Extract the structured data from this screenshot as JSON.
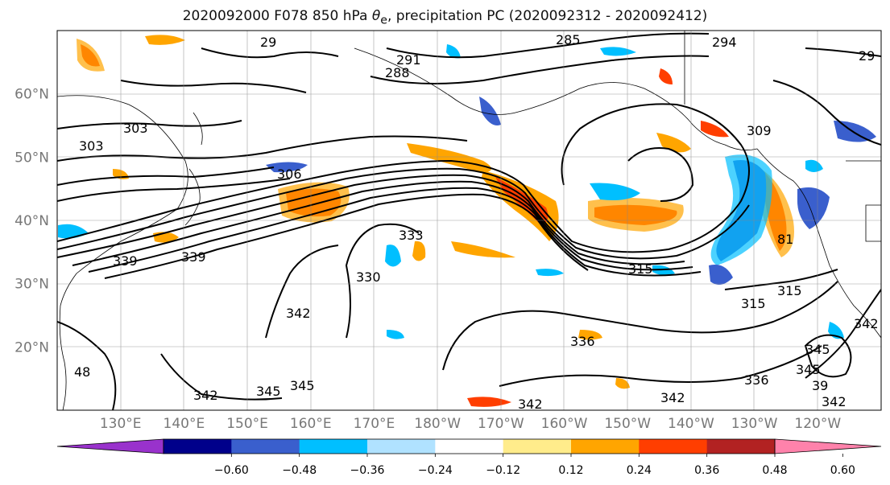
{
  "title": {
    "prefix": "2020092000 F078 850 hPa ",
    "theta": "θ",
    "sub": "e",
    "suffix": ", precipitation PC (2020092312 - 2020092412)"
  },
  "lat_labels": [
    "60°N",
    "50°N",
    "40°N",
    "30°N",
    "20°N"
  ],
  "lat_values": [
    60,
    50,
    40,
    30,
    20
  ],
  "lon_labels": [
    "130°E",
    "140°E",
    "150°E",
    "160°E",
    "170°E",
    "180°W",
    "170°W",
    "160°W",
    "150°W",
    "140°W",
    "130°W",
    "120°W"
  ],
  "lon_values": [
    130,
    140,
    150,
    160,
    170,
    180,
    190,
    200,
    210,
    220,
    230,
    240
  ],
  "map_extent": {
    "lon_min": 120,
    "lon_max": 250,
    "lat_min": 10,
    "lat_max": 70
  },
  "contour_labels": [
    "29",
    "285",
    "291",
    "288",
    "294",
    "29",
    "303",
    "303",
    "306",
    "309",
    "315",
    "339",
    "339",
    "330",
    "342",
    "345",
    "345",
    "342",
    "342",
    "345",
    "336",
    "315",
    "315",
    "345",
    "39",
    "342",
    "342",
    "336",
    "342",
    "48",
    "333",
    "81"
  ],
  "colorbar": {
    "ticks": [
      "−0.60",
      "−0.48",
      "−0.36",
      "−0.24",
      "−0.12",
      "0.12",
      "0.24",
      "0.36",
      "0.48",
      "0.60"
    ],
    "colors": [
      "#9932cc",
      "#00008b",
      "#3a5fcd",
      "#00bfff",
      "#b0e2ff",
      "#ffffff",
      "#ffec8b",
      "#ffa500",
      "#ff3e00",
      "#b22222",
      "#ff82ab"
    ]
  }
}
